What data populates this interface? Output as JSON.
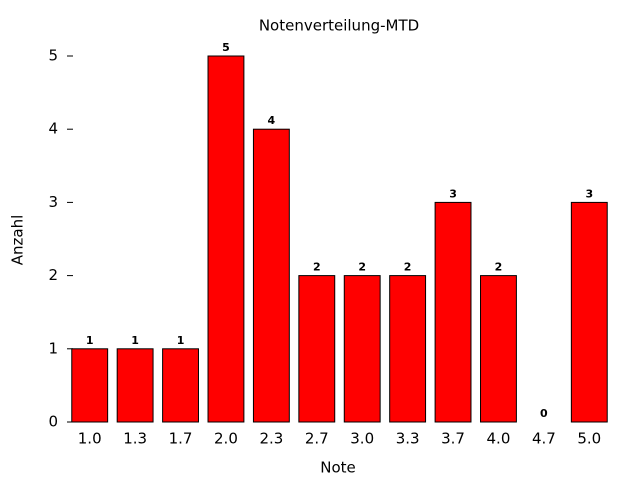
{
  "chart_data": {
    "type": "bar",
    "title": "Notenverteilung-MTD",
    "x_label": "Note",
    "y_label": "Anzahl",
    "categories": [
      "1.0",
      "1.3",
      "1.7",
      "2.0",
      "2.3",
      "2.7",
      "3.0",
      "3.3",
      "3.7",
      "4.0",
      "4.7",
      "5.0"
    ],
    "values": [
      1,
      1,
      1,
      5,
      4,
      2,
      2,
      2,
      3,
      2,
      0,
      3
    ],
    "color": "#ff0000",
    "ylim": [
      0,
      5
    ],
    "yticks": [
      0,
      1,
      2,
      3,
      4,
      5
    ],
    "grid": false
  }
}
